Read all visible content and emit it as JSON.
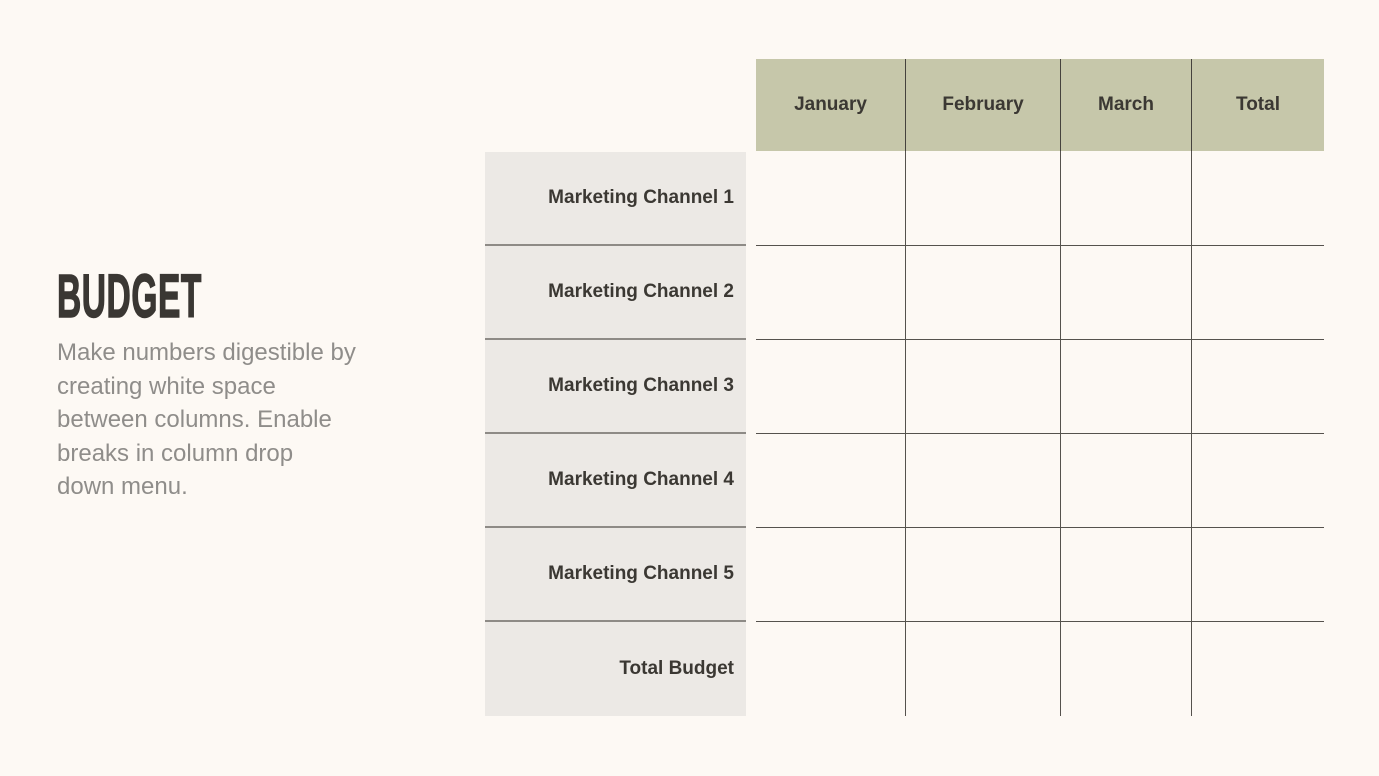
{
  "slide": {
    "background_color": "#FDF9F4",
    "title": "BUDGET",
    "description_lines": [
      "Make numbers digestible by",
      "creating white space",
      "between columns. Enable",
      "breaks in column drop",
      "down menu."
    ]
  },
  "table": {
    "columns": [
      "January",
      "February",
      "March",
      "Total"
    ],
    "rows": [
      {
        "label": "Marketing Channel 1",
        "values": [
          "",
          "",
          "",
          ""
        ]
      },
      {
        "label": "Marketing Channel 2",
        "values": [
          "",
          "",
          "",
          ""
        ]
      },
      {
        "label": "Marketing Channel 3",
        "values": [
          "",
          "",
          "",
          ""
        ]
      },
      {
        "label": "Marketing Channel 4",
        "values": [
          "",
          "",
          "",
          ""
        ]
      },
      {
        "label": "Marketing Channel 5",
        "values": [
          "",
          "",
          "",
          ""
        ]
      },
      {
        "label": "Total Budget",
        "values": [
          "",
          "",
          "",
          ""
        ]
      }
    ]
  },
  "colors": {
    "page_background": "#FDF9F4",
    "header_background": "#C6C7AA",
    "label_column_background": "#ECE9E5",
    "grid_line": "#55524D",
    "label_divider": "#8E8B86",
    "heading_text": "#3A3733",
    "table_text": "#3B3833",
    "description_text": "#8F8D8A"
  }
}
